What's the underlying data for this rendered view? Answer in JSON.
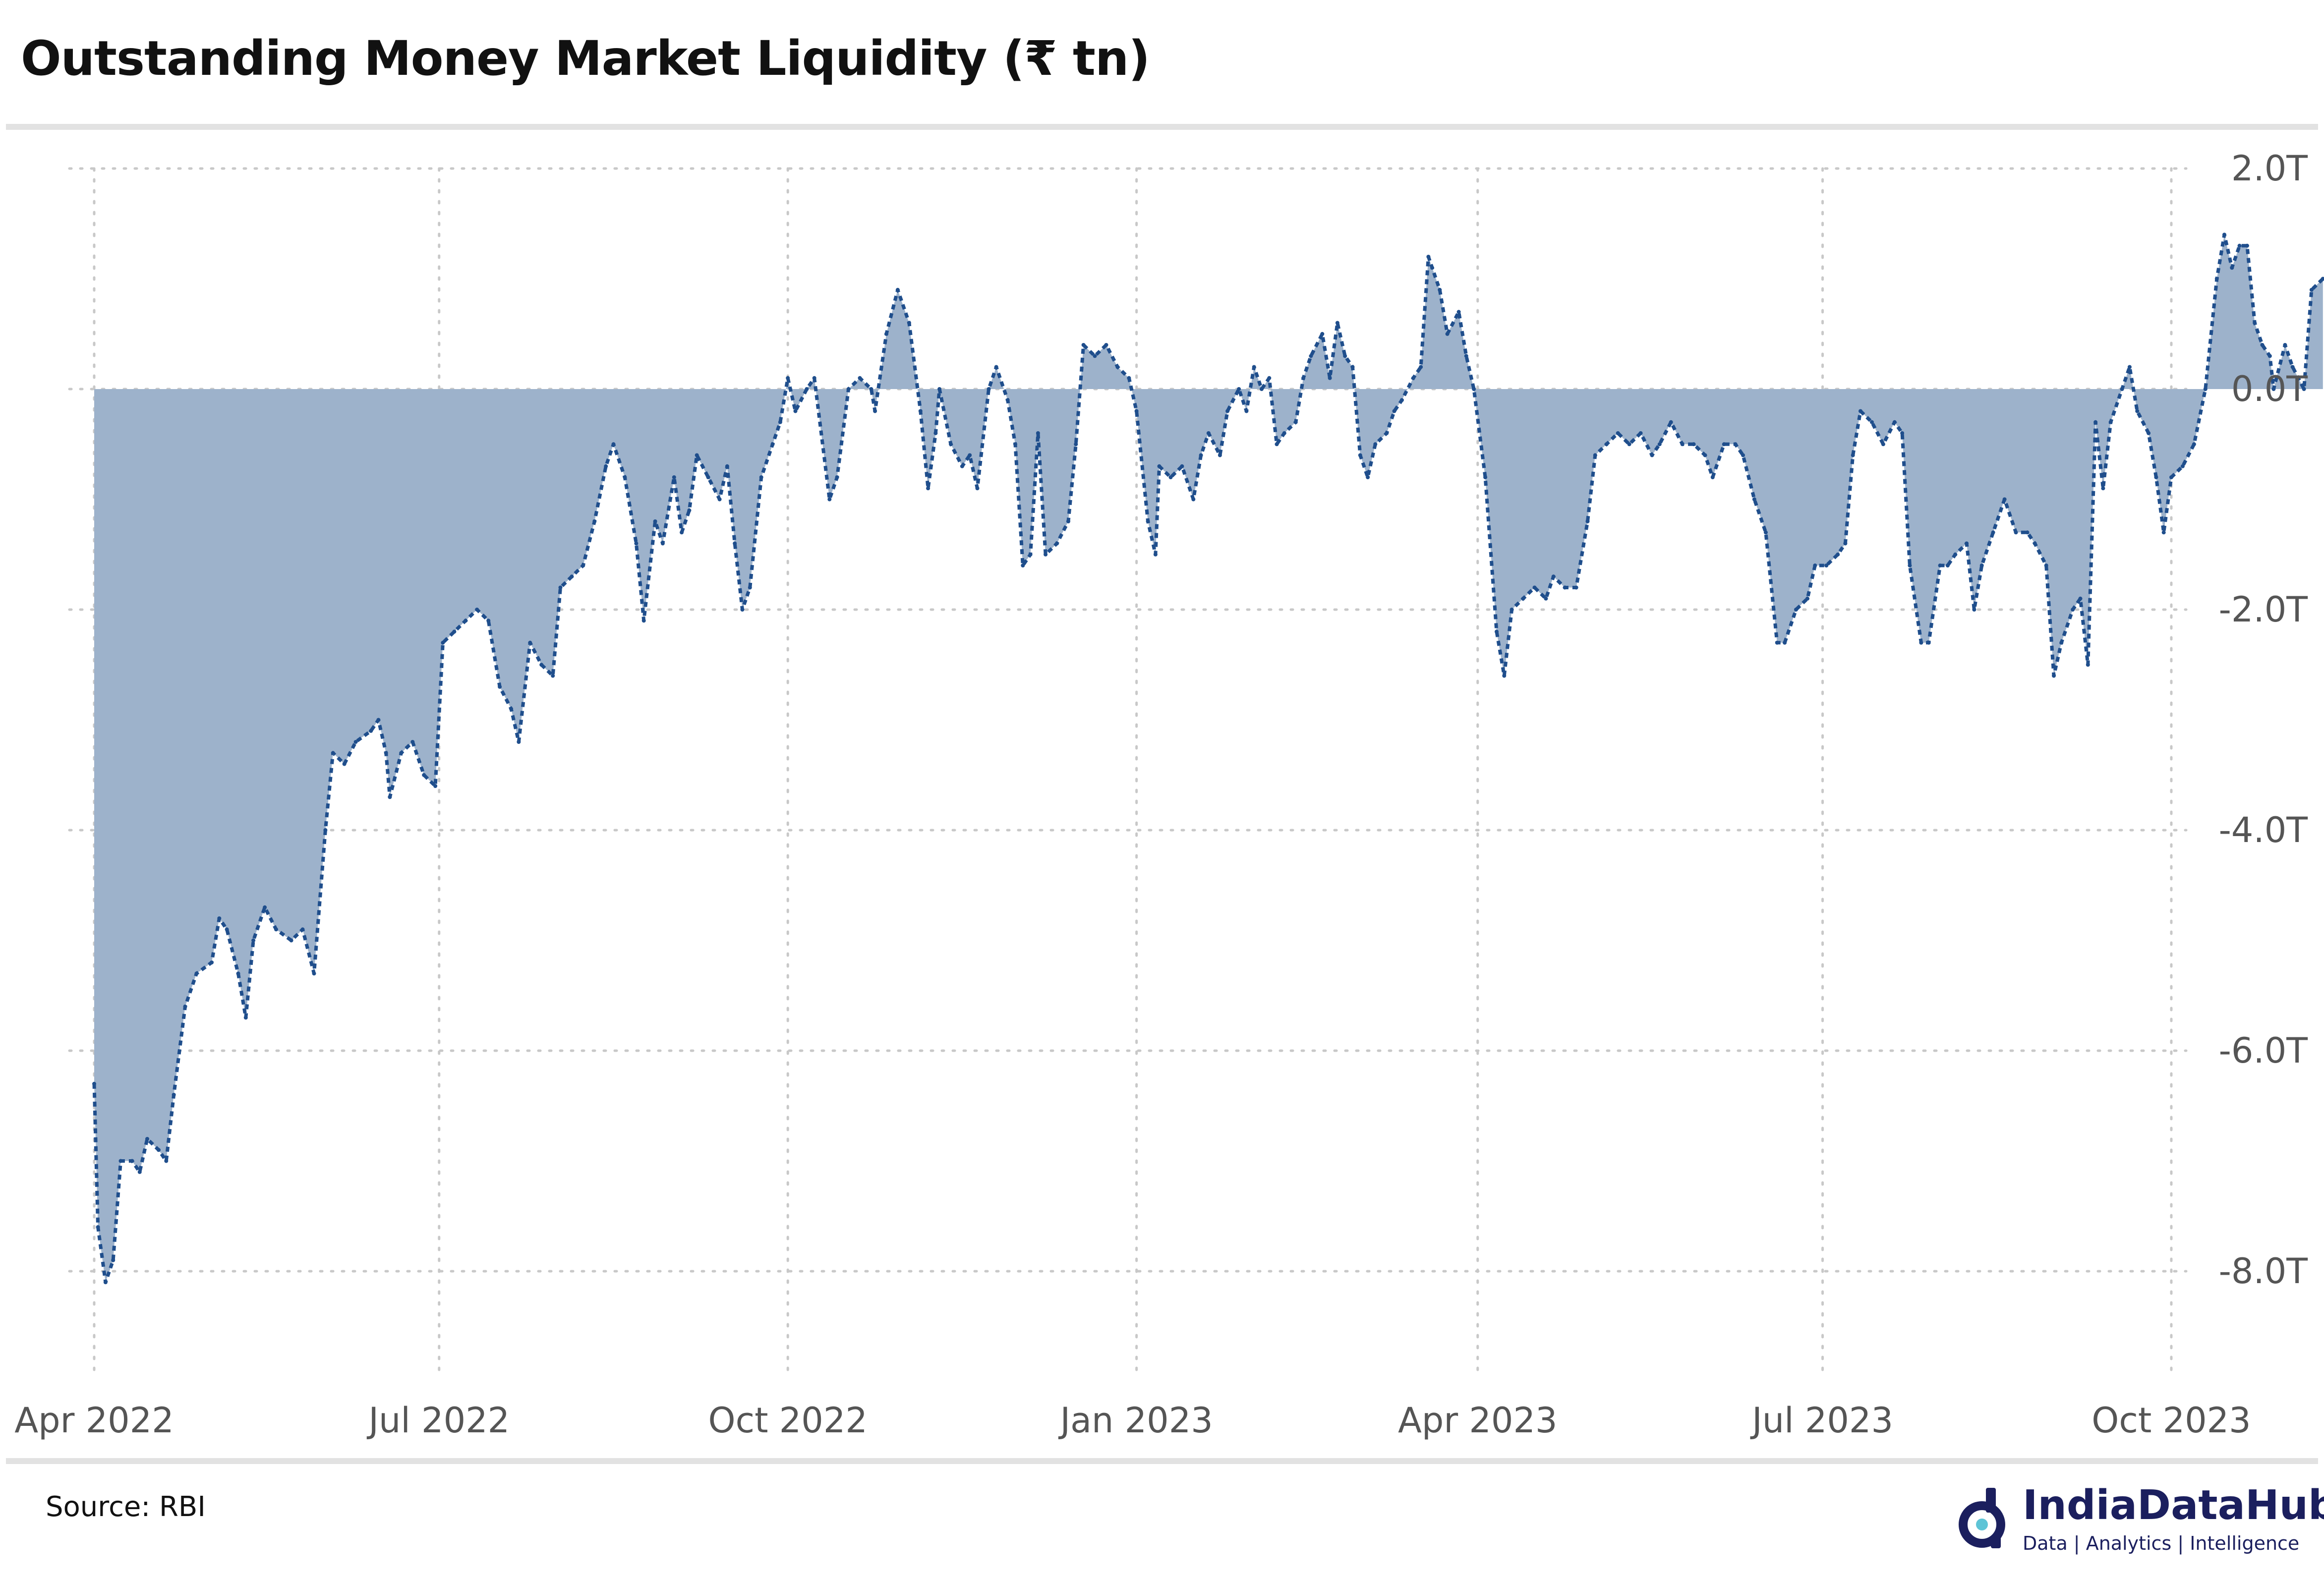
{
  "title": "Outstanding Money Market Liquidity (₹ tn)",
  "source": "Source: RBI",
  "brand": {
    "name": "IndiaDataHub",
    "tagline": "Data | Analytics | Intelligence"
  },
  "colors": {
    "fill": "#9db2cb",
    "line": "#1f4e8c",
    "grid": "#c8c8c8",
    "brand": "#1b1f5e"
  },
  "chart_data": {
    "type": "area",
    "title": "Outstanding Money Market Liquidity (₹ tn)",
    "xlabel": "",
    "ylabel": "",
    "x_tick_labels": [
      "Apr 2022",
      "Jul 2022",
      "Oct 2022",
      "Jan 2023",
      "Apr 2023",
      "Jul 2023",
      "Oct 2023"
    ],
    "x_ticks": [
      "2022-04-01",
      "2022-07-01",
      "2022-10-01",
      "2023-01-01",
      "2023-04-01",
      "2023-07-01",
      "2023-10-01"
    ],
    "y_tick_labels": [
      "2.0T",
      "0.0T",
      "-2.0T",
      "-4.0T",
      "-6.0T",
      "-8.0T"
    ],
    "y_ticks": [
      2,
      0,
      -2,
      -4,
      -6,
      -8
    ],
    "xlim": [
      "2022-04-01",
      "2023-10-27"
    ],
    "ylim": [
      -9,
      2.2
    ],
    "grid": true,
    "legend": "none",
    "units": "₹ trillion",
    "series": [
      {
        "values": [
          [
            "2022-04-01",
            -6.3
          ],
          [
            "2022-04-02",
            -7.6
          ],
          [
            "2022-04-04",
            -8.1
          ],
          [
            "2022-04-06",
            -7.9
          ],
          [
            "2022-04-08",
            -7.0
          ],
          [
            "2022-04-11",
            -7.0
          ],
          [
            "2022-04-13",
            -7.1
          ],
          [
            "2022-04-15",
            -6.8
          ],
          [
            "2022-04-18",
            -6.9
          ],
          [
            "2022-04-20",
            -7.0
          ],
          [
            "2022-04-22",
            -6.4
          ],
          [
            "2022-04-25",
            -5.6
          ],
          [
            "2022-04-28",
            -5.3
          ],
          [
            "2022-05-02",
            -5.2
          ],
          [
            "2022-05-04",
            -4.8
          ],
          [
            "2022-05-06",
            -4.9
          ],
          [
            "2022-05-09",
            -5.3
          ],
          [
            "2022-05-11",
            -5.7
          ],
          [
            "2022-05-13",
            -5.0
          ],
          [
            "2022-05-16",
            -4.7
          ],
          [
            "2022-05-19",
            -4.9
          ],
          [
            "2022-05-23",
            -5.0
          ],
          [
            "2022-05-26",
            -4.9
          ],
          [
            "2022-05-29",
            -5.3
          ],
          [
            "2022-06-01",
            -4.0
          ],
          [
            "2022-06-03",
            -3.3
          ],
          [
            "2022-06-06",
            -3.4
          ],
          [
            "2022-06-09",
            -3.2
          ],
          [
            "2022-06-13",
            -3.1
          ],
          [
            "2022-06-15",
            -3.0
          ],
          [
            "2022-06-17",
            -3.3
          ],
          [
            "2022-06-18",
            -3.7
          ],
          [
            "2022-06-21",
            -3.3
          ],
          [
            "2022-06-24",
            -3.2
          ],
          [
            "2022-06-27",
            -3.5
          ],
          [
            "2022-06-30",
            -3.6
          ],
          [
            "2022-07-02",
            -2.3
          ],
          [
            "2022-07-05",
            -2.2
          ],
          [
            "2022-07-08",
            -2.1
          ],
          [
            "2022-07-11",
            -2.0
          ],
          [
            "2022-07-14",
            -2.1
          ],
          [
            "2022-07-17",
            -2.7
          ],
          [
            "2022-07-20",
            -2.9
          ],
          [
            "2022-07-22",
            -3.2
          ],
          [
            "2022-07-25",
            -2.3
          ],
          [
            "2022-07-28",
            -2.5
          ],
          [
            "2022-07-31",
            -2.6
          ],
          [
            "2022-08-02",
            -1.8
          ],
          [
            "2022-08-05",
            -1.7
          ],
          [
            "2022-08-08",
            -1.6
          ],
          [
            "2022-08-11",
            -1.2
          ],
          [
            "2022-08-14",
            -0.7
          ],
          [
            "2022-08-16",
            -0.5
          ],
          [
            "2022-08-19",
            -0.8
          ],
          [
            "2022-08-22",
            -1.4
          ],
          [
            "2022-08-24",
            -2.1
          ],
          [
            "2022-08-27",
            -1.2
          ],
          [
            "2022-08-29",
            -1.4
          ],
          [
            "2022-09-01",
            -0.8
          ],
          [
            "2022-09-03",
            -1.3
          ],
          [
            "2022-09-05",
            -1.1
          ],
          [
            "2022-09-07",
            -0.6
          ],
          [
            "2022-09-10",
            -0.8
          ],
          [
            "2022-09-13",
            -1.0
          ],
          [
            "2022-09-15",
            -0.7
          ],
          [
            "2022-09-17",
            -1.4
          ],
          [
            "2022-09-19",
            -2.0
          ],
          [
            "2022-09-21",
            -1.8
          ],
          [
            "2022-09-24",
            -0.8
          ],
          [
            "2022-09-27",
            -0.5
          ],
          [
            "2022-09-29",
            -0.3
          ],
          [
            "2022-10-01",
            0.1
          ],
          [
            "2022-10-03",
            -0.2
          ],
          [
            "2022-10-06",
            0.0
          ],
          [
            "2022-10-08",
            0.1
          ],
          [
            "2022-10-12",
            -1.0
          ],
          [
            "2022-10-14",
            -0.8
          ],
          [
            "2022-10-17",
            0.0
          ],
          [
            "2022-10-20",
            0.1
          ],
          [
            "2022-10-23",
            0.0
          ],
          [
            "2022-10-24",
            -0.2
          ],
          [
            "2022-10-27",
            0.5
          ],
          [
            "2022-10-30",
            0.9
          ],
          [
            "2022-11-02",
            0.6
          ],
          [
            "2022-11-05",
            -0.2
          ],
          [
            "2022-11-07",
            -0.9
          ],
          [
            "2022-11-09",
            -0.4
          ],
          [
            "2022-11-10",
            0.0
          ],
          [
            "2022-11-13",
            -0.5
          ],
          [
            "2022-11-16",
            -0.7
          ],
          [
            "2022-11-18",
            -0.6
          ],
          [
            "2022-11-20",
            -0.9
          ],
          [
            "2022-11-23",
            0.0
          ],
          [
            "2022-11-25",
            0.2
          ],
          [
            "2022-11-28",
            -0.1
          ],
          [
            "2022-11-30",
            -0.5
          ],
          [
            "2022-12-02",
            -1.6
          ],
          [
            "2022-12-04",
            -1.5
          ],
          [
            "2022-12-06",
            -0.4
          ],
          [
            "2022-12-08",
            -1.5
          ],
          [
            "2022-12-11",
            -1.4
          ],
          [
            "2022-12-14",
            -1.2
          ],
          [
            "2022-12-16",
            -0.5
          ],
          [
            "2022-12-18",
            0.4
          ],
          [
            "2022-12-21",
            0.3
          ],
          [
            "2022-12-24",
            0.4
          ],
          [
            "2022-12-27",
            0.2
          ],
          [
            "2022-12-30",
            0.1
          ],
          [
            "2023-01-01",
            -0.2
          ],
          [
            "2023-01-04",
            -1.2
          ],
          [
            "2023-01-06",
            -1.5
          ],
          [
            "2023-01-07",
            -0.7
          ],
          [
            "2023-01-10",
            -0.8
          ],
          [
            "2023-01-13",
            -0.7
          ],
          [
            "2023-01-16",
            -1.0
          ],
          [
            "2023-01-18",
            -0.6
          ],
          [
            "2023-01-20",
            -0.4
          ],
          [
            "2023-01-23",
            -0.6
          ],
          [
            "2023-01-25",
            -0.2
          ],
          [
            "2023-01-28",
            0.0
          ],
          [
            "2023-01-30",
            -0.2
          ],
          [
            "2023-02-01",
            0.2
          ],
          [
            "2023-02-03",
            0.0
          ],
          [
            "2023-02-05",
            0.1
          ],
          [
            "2023-02-07",
            -0.5
          ],
          [
            "2023-02-09",
            -0.4
          ],
          [
            "2023-02-12",
            -0.3
          ],
          [
            "2023-02-14",
            0.1
          ],
          [
            "2023-02-16",
            0.3
          ],
          [
            "2023-02-19",
            0.5
          ],
          [
            "2023-02-21",
            0.1
          ],
          [
            "2023-02-23",
            0.6
          ],
          [
            "2023-02-25",
            0.3
          ],
          [
            "2023-02-27",
            0.2
          ],
          [
            "2023-03-01",
            -0.6
          ],
          [
            "2023-03-03",
            -0.8
          ],
          [
            "2023-03-05",
            -0.5
          ],
          [
            "2023-03-08",
            -0.4
          ],
          [
            "2023-03-10",
            -0.2
          ],
          [
            "2023-03-12",
            -0.1
          ],
          [
            "2023-03-15",
            0.1
          ],
          [
            "2023-03-17",
            0.2
          ],
          [
            "2023-03-19",
            1.2
          ],
          [
            "2023-03-20",
            1.1
          ],
          [
            "2023-03-22",
            0.9
          ],
          [
            "2023-03-24",
            0.5
          ],
          [
            "2023-03-27",
            0.7
          ],
          [
            "2023-03-29",
            0.3
          ],
          [
            "2023-03-31",
            0.0
          ],
          [
            "2023-04-03",
            -0.8
          ],
          [
            "2023-04-06",
            -2.2
          ],
          [
            "2023-04-08",
            -2.6
          ],
          [
            "2023-04-10",
            -2.0
          ],
          [
            "2023-04-13",
            -1.9
          ],
          [
            "2023-04-16",
            -1.8
          ],
          [
            "2023-04-19",
            -1.9
          ],
          [
            "2023-04-21",
            -1.7
          ],
          [
            "2023-04-24",
            -1.8
          ],
          [
            "2023-04-27",
            -1.8
          ],
          [
            "2023-04-30",
            -1.2
          ],
          [
            "2023-05-02",
            -0.6
          ],
          [
            "2023-05-05",
            -0.5
          ],
          [
            "2023-05-08",
            -0.4
          ],
          [
            "2023-05-11",
            -0.5
          ],
          [
            "2023-05-14",
            -0.4
          ],
          [
            "2023-05-17",
            -0.6
          ],
          [
            "2023-05-19",
            -0.5
          ],
          [
            "2023-05-22",
            -0.3
          ],
          [
            "2023-05-25",
            -0.5
          ],
          [
            "2023-05-28",
            -0.5
          ],
          [
            "2023-05-31",
            -0.6
          ],
          [
            "2023-06-02",
            -0.8
          ],
          [
            "2023-06-05",
            -0.5
          ],
          [
            "2023-06-08",
            -0.5
          ],
          [
            "2023-06-10",
            -0.6
          ],
          [
            "2023-06-13",
            -1.0
          ],
          [
            "2023-06-16",
            -1.3
          ],
          [
            "2023-06-19",
            -2.3
          ],
          [
            "2023-06-21",
            -2.3
          ],
          [
            "2023-06-24",
            -2.0
          ],
          [
            "2023-06-27",
            -1.9
          ],
          [
            "2023-06-29",
            -1.6
          ],
          [
            "2023-07-02",
            -1.6
          ],
          [
            "2023-07-05",
            -1.5
          ],
          [
            "2023-07-07",
            -1.4
          ],
          [
            "2023-07-09",
            -0.6
          ],
          [
            "2023-07-11",
            -0.2
          ],
          [
            "2023-07-14",
            -0.3
          ],
          [
            "2023-07-17",
            -0.5
          ],
          [
            "2023-07-20",
            -0.3
          ],
          [
            "2023-07-22",
            -0.4
          ],
          [
            "2023-07-24",
            -1.6
          ],
          [
            "2023-07-27",
            -2.3
          ],
          [
            "2023-07-29",
            -2.3
          ],
          [
            "2023-08-01",
            -1.6
          ],
          [
            "2023-08-03",
            -1.6
          ],
          [
            "2023-08-05",
            -1.5
          ],
          [
            "2023-08-08",
            -1.4
          ],
          [
            "2023-08-10",
            -2.0
          ],
          [
            "2023-08-12",
            -1.6
          ],
          [
            "2023-08-15",
            -1.3
          ],
          [
            "2023-08-18",
            -1.0
          ],
          [
            "2023-08-21",
            -1.3
          ],
          [
            "2023-08-24",
            -1.3
          ],
          [
            "2023-08-26",
            -1.4
          ],
          [
            "2023-08-29",
            -1.6
          ],
          [
            "2023-08-31",
            -2.6
          ],
          [
            "2023-09-02",
            -2.3
          ],
          [
            "2023-09-05",
            -2.0
          ],
          [
            "2023-09-07",
            -1.9
          ],
          [
            "2023-09-09",
            -2.5
          ],
          [
            "2023-09-11",
            -0.3
          ],
          [
            "2023-09-13",
            -0.9
          ],
          [
            "2023-09-15",
            -0.3
          ],
          [
            "2023-09-18",
            0.0
          ],
          [
            "2023-09-20",
            0.2
          ],
          [
            "2023-09-22",
            -0.2
          ],
          [
            "2023-09-25",
            -0.4
          ],
          [
            "2023-09-27",
            -0.8
          ],
          [
            "2023-09-29",
            -1.3
          ],
          [
            "2023-10-01",
            -0.8
          ],
          [
            "2023-10-04",
            -0.7
          ],
          [
            "2023-10-07",
            -0.5
          ],
          [
            "2023-10-10",
            0.0
          ],
          [
            "2023-10-13",
            1.0
          ],
          [
            "2023-10-15",
            1.4
          ],
          [
            "2023-10-17",
            1.1
          ],
          [
            "2023-10-19",
            1.3
          ],
          [
            "2023-10-21",
            1.3
          ],
          [
            "2023-10-23",
            0.6
          ],
          [
            "2023-10-25",
            0.4
          ],
          [
            "2023-10-27",
            0.3
          ],
          [
            "2023-10-28",
            0.0
          ],
          [
            "2023-10-31",
            0.4
          ],
          [
            "2023-11-02",
            0.2
          ],
          [
            "2023-11-05",
            0.0
          ],
          [
            "2023-11-07",
            0.9
          ],
          [
            "2023-11-10",
            1.0
          ]
        ]
      }
    ]
  }
}
